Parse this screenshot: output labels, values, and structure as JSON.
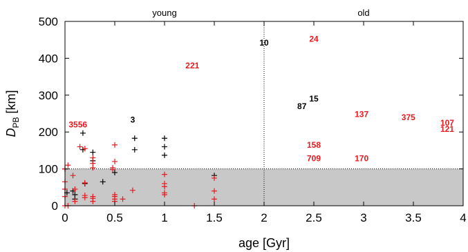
{
  "chart_data": {
    "type": "scatter",
    "xlabel": "age [Gyr]",
    "ylabel_main": "D",
    "ylabel_sub": "PB",
    "ylabel_unit": " [km]",
    "xlim": [
      0,
      4
    ],
    "ylim": [
      0,
      500
    ],
    "xticks": [
      "0",
      "0.5",
      "1",
      "1.5",
      "2",
      "2.5",
      "3",
      "3.5",
      "4"
    ],
    "yticks": [
      "0",
      "100",
      "200",
      "300",
      "400",
      "500"
    ],
    "region_labels": {
      "left": "young",
      "right": "old"
    },
    "divider_x": 2,
    "shaded_band_y": [
      0,
      100
    ],
    "colors": {
      "black": "#000000",
      "red": "#e8191e",
      "shade": "#c8c8c8"
    },
    "series": [
      {
        "color": "black",
        "points": [
          [
            0,
            100
          ],
          [
            0.02,
            35
          ],
          [
            0.08,
            40
          ],
          [
            0.1,
            18
          ],
          [
            0.18,
            197
          ],
          [
            0.18,
            152
          ],
          [
            0.2,
            60
          ],
          [
            0.28,
            145
          ],
          [
            0.28,
            122
          ],
          [
            0.38,
            65
          ],
          [
            0.5,
            90
          ],
          [
            0.7,
            183
          ],
          [
            0.7,
            152
          ],
          [
            1.0,
            183
          ],
          [
            1.0,
            160
          ],
          [
            1.0,
            137
          ],
          [
            1.5,
            82
          ],
          [
            0.1,
            30
          ]
        ]
      },
      {
        "color": "red",
        "points": [
          [
            0,
            100
          ],
          [
            0,
            65
          ],
          [
            0,
            45
          ],
          [
            0,
            25
          ],
          [
            0,
            0
          ],
          [
            0.03,
            110
          ],
          [
            0.03,
            0
          ],
          [
            0.08,
            82
          ],
          [
            0.1,
            45
          ],
          [
            0.1,
            12
          ],
          [
            0.15,
            160
          ],
          [
            0.2,
            155
          ],
          [
            0.2,
            62
          ],
          [
            0.2,
            28
          ],
          [
            0.2,
            22
          ],
          [
            0.28,
            130
          ],
          [
            0.28,
            115
          ],
          [
            0.28,
            103
          ],
          [
            0.28,
            25
          ],
          [
            0.28,
            20
          ],
          [
            0.28,
            12
          ],
          [
            0.48,
            103
          ],
          [
            0.48,
            98
          ],
          [
            0.5,
            165
          ],
          [
            0.5,
            120
          ],
          [
            0.5,
            30
          ],
          [
            0.5,
            25
          ],
          [
            0.5,
            18
          ],
          [
            0.5,
            12
          ],
          [
            0.58,
            18
          ],
          [
            0.68,
            42
          ],
          [
            1.0,
            85
          ],
          [
            1.0,
            60
          ],
          [
            1.0,
            52
          ],
          [
            1.0,
            35
          ],
          [
            1.0,
            30
          ],
          [
            1.3,
            0
          ],
          [
            1.5,
            75
          ],
          [
            1.5,
            40
          ],
          [
            1.5,
            18
          ]
        ]
      }
    ],
    "annotations": [
      {
        "text": "3556",
        "x": 0.13,
        "y": 220,
        "color": "red"
      },
      {
        "text": "3",
        "x": 0.68,
        "y": 233,
        "color": "black"
      },
      {
        "text": "221",
        "x": 1.28,
        "y": 380,
        "color": "red"
      },
      {
        "text": "10",
        "x": 2.0,
        "y": 442,
        "color": "black"
      },
      {
        "text": "24",
        "x": 2.5,
        "y": 452,
        "color": "red"
      },
      {
        "text": "15",
        "x": 2.5,
        "y": 290,
        "color": "black"
      },
      {
        "text": "87",
        "x": 2.38,
        "y": 270,
        "color": "black"
      },
      {
        "text": "137",
        "x": 2.98,
        "y": 248,
        "color": "red"
      },
      {
        "text": "375",
        "x": 3.45,
        "y": 240,
        "color": "red"
      },
      {
        "text": "107",
        "x": 3.84,
        "y": 225,
        "color": "red"
      },
      {
        "text": "121",
        "x": 3.84,
        "y": 208,
        "color": "red"
      },
      {
        "text": "158",
        "x": 2.5,
        "y": 165,
        "color": "red"
      },
      {
        "text": "709",
        "x": 2.5,
        "y": 128,
        "color": "red"
      },
      {
        "text": "170",
        "x": 2.98,
        "y": 128,
        "color": "red"
      }
    ]
  }
}
